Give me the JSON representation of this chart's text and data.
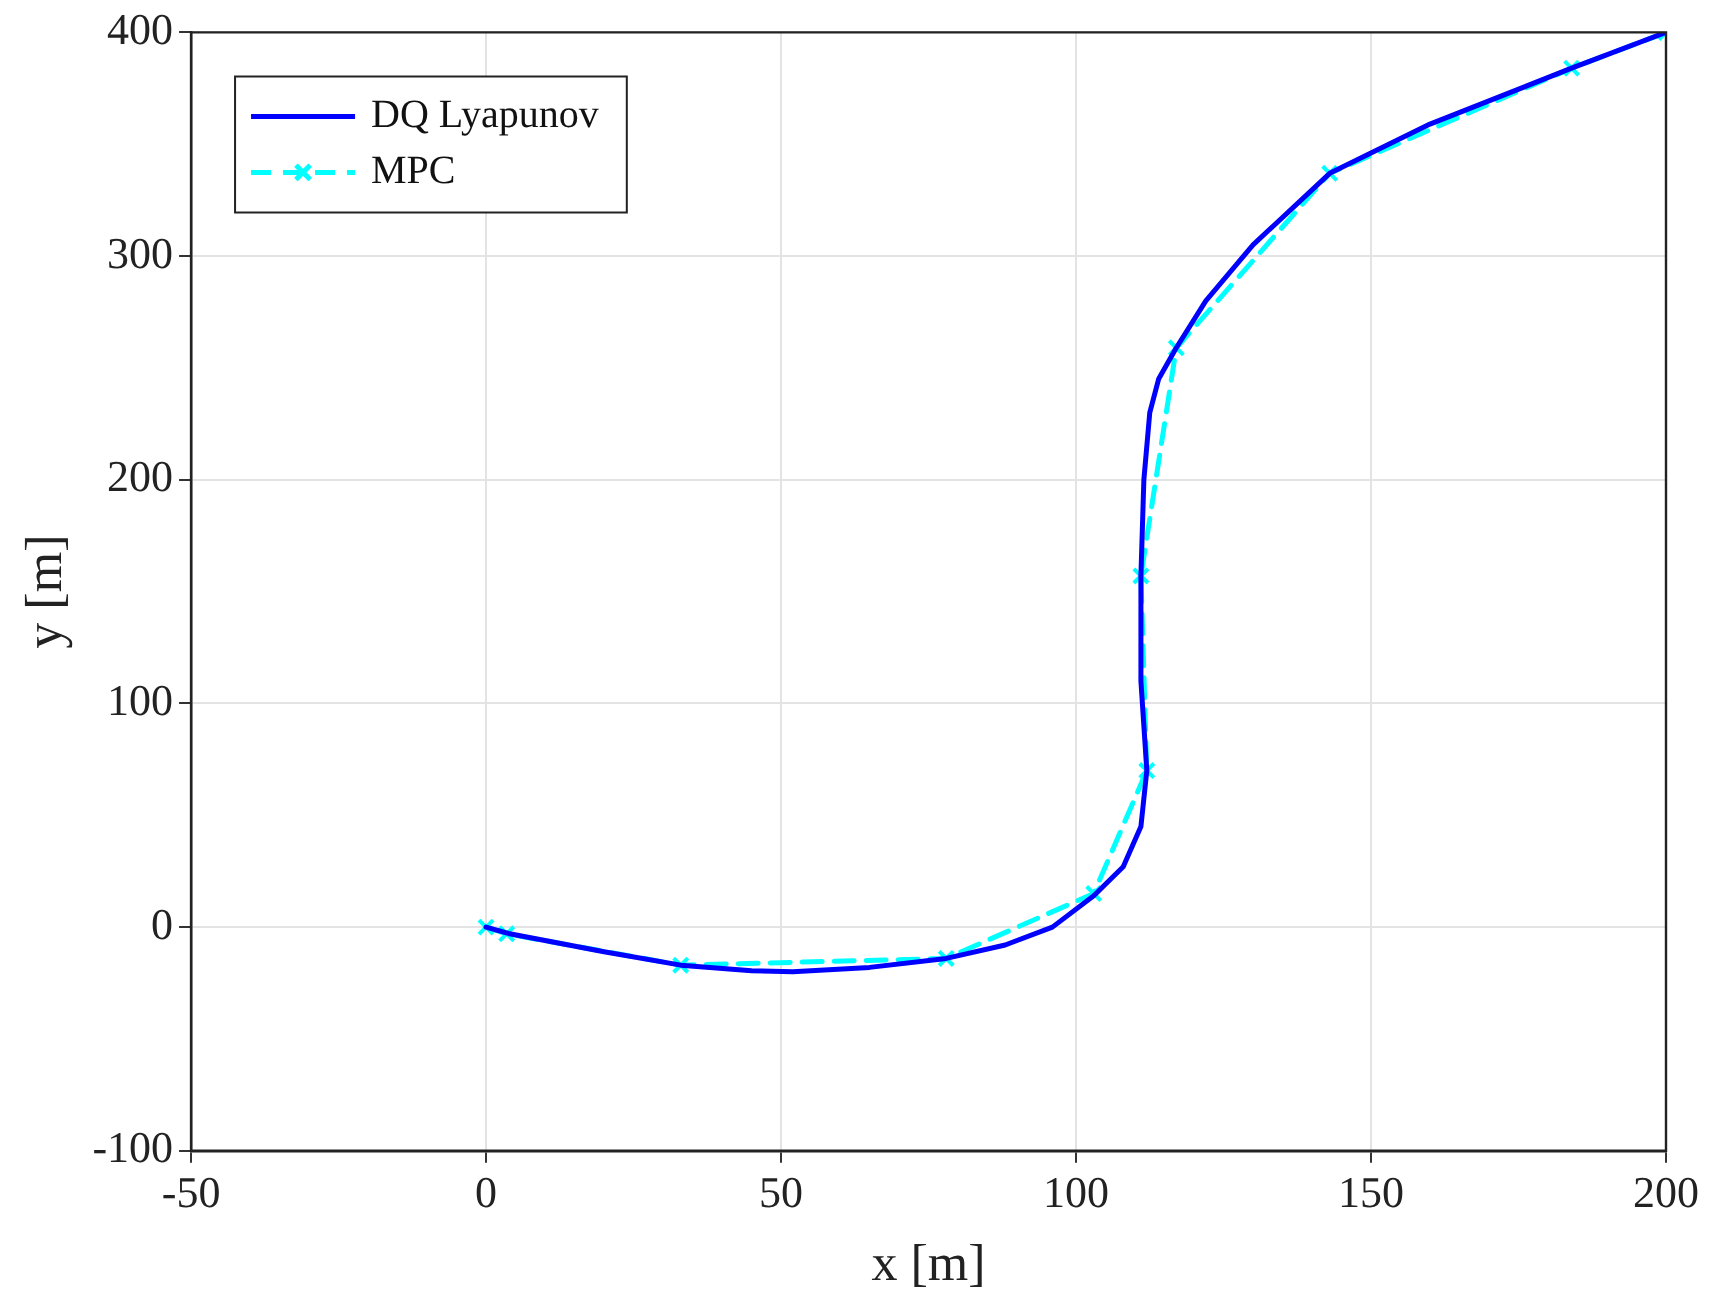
{
  "chart_data": {
    "type": "line",
    "xlabel": "x [m]",
    "ylabel": "y [m]",
    "xlim": [
      -50,
      200
    ],
    "xticks": [
      -50,
      0,
      50,
      100,
      150,
      200
    ],
    "ylim": [
      -100,
      400
    ],
    "yticks": [
      -100,
      0,
      100,
      200,
      300,
      400
    ],
    "grid": true,
    "legend": "top left",
    "series": [
      {
        "name": "DQ Lyapunov",
        "color": "#0000ff",
        "marker": "none",
        "line_style": "solid",
        "x": [
          0,
          4,
          10,
          20,
          33,
          45,
          52,
          65,
          78,
          88,
          96,
          103,
          108,
          111,
          112,
          111.5,
          111,
          111,
          111.5,
          112.5,
          114,
          117,
          122,
          130,
          143,
          160,
          184,
          200
        ],
        "values": [
          0,
          -3,
          -6,
          -11,
          -17,
          -19.5,
          -20,
          -18,
          -14,
          -8,
          0,
          14,
          27,
          45,
          70,
          90,
          110,
          157,
          200,
          230,
          245,
          259,
          280,
          305,
          337,
          359,
          384,
          400
        ]
      },
      {
        "name": "MPC",
        "color": "#00ffff",
        "marker": "cross",
        "line_style": "dashed",
        "x": [
          0,
          3.5,
          33,
          78,
          103,
          112,
          111,
          117,
          143,
          184,
          200
        ],
        "values": [
          0,
          -3,
          -17,
          -14,
          15,
          70,
          157,
          259,
          337,
          384,
          400
        ]
      }
    ]
  }
}
